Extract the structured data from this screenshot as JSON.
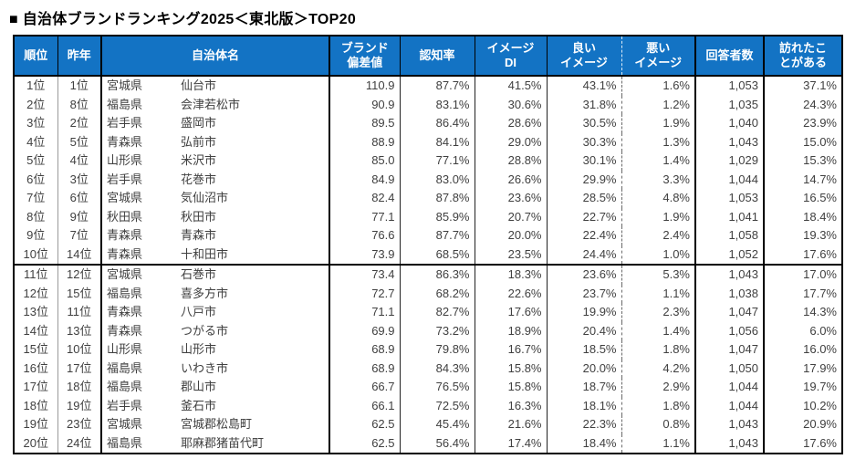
{
  "title": "■ 自治体ブランドランキング2025＜東北版＞TOP20",
  "colors": {
    "header_bg": "#1373C4",
    "header_text": "#FFFFFF",
    "body_text": "#404040",
    "border": "#000000"
  },
  "table": {
    "headers": [
      "順位",
      "昨年",
      "自治体名",
      "ブランド\n偏差値",
      "認知率",
      "イメージ\nDI",
      "良い\nイメージ",
      "悪い\nイメージ",
      "回答者数",
      "訪れたこ\nとがある"
    ]
  },
  "chart_data": {
    "type": "table",
    "title": "自治体ブランドランキング2025＜東北版＞TOP20",
    "columns": [
      "順位",
      "昨年",
      "自治体名（県）",
      "自治体名（市町村）",
      "ブランド偏差値",
      "認知率",
      "イメージDI",
      "良いイメージ",
      "悪いイメージ",
      "回答者数",
      "訪れたことがある"
    ],
    "rows": [
      [
        "1位",
        "1位",
        "宮城県",
        "仙台市",
        "110.9",
        "87.7%",
        "41.5%",
        "43.1%",
        "1.6%",
        "1,053",
        "37.1%"
      ],
      [
        "2位",
        "8位",
        "福島県",
        "会津若松市",
        "90.9",
        "83.1%",
        "30.6%",
        "31.8%",
        "1.2%",
        "1,035",
        "24.3%"
      ],
      [
        "3位",
        "2位",
        "岩手県",
        "盛岡市",
        "89.5",
        "86.4%",
        "28.6%",
        "30.5%",
        "1.9%",
        "1,040",
        "23.9%"
      ],
      [
        "4位",
        "5位",
        "青森県",
        "弘前市",
        "88.9",
        "84.1%",
        "29.0%",
        "30.3%",
        "1.3%",
        "1,043",
        "15.0%"
      ],
      [
        "5位",
        "4位",
        "山形県",
        "米沢市",
        "85.0",
        "77.1%",
        "28.8%",
        "30.1%",
        "1.4%",
        "1,029",
        "15.3%"
      ],
      [
        "6位",
        "3位",
        "岩手県",
        "花巻市",
        "84.9",
        "83.0%",
        "26.6%",
        "29.9%",
        "3.3%",
        "1,044",
        "14.7%"
      ],
      [
        "7位",
        "6位",
        "宮城県",
        "気仙沼市",
        "82.4",
        "87.8%",
        "23.6%",
        "28.5%",
        "4.8%",
        "1,053",
        "16.5%"
      ],
      [
        "8位",
        "9位",
        "秋田県",
        "秋田市",
        "77.1",
        "85.9%",
        "20.7%",
        "22.7%",
        "1.9%",
        "1,041",
        "18.4%"
      ],
      [
        "9位",
        "7位",
        "青森県",
        "青森市",
        "76.6",
        "87.7%",
        "20.0%",
        "22.4%",
        "2.4%",
        "1,058",
        "19.3%"
      ],
      [
        "10位",
        "14位",
        "青森県",
        "十和田市",
        "73.9",
        "68.5%",
        "23.5%",
        "24.4%",
        "1.0%",
        "1,052",
        "17.6%"
      ],
      [
        "11位",
        "12位",
        "宮城県",
        "石巻市",
        "73.4",
        "86.3%",
        "18.3%",
        "23.6%",
        "5.3%",
        "1,043",
        "17.0%"
      ],
      [
        "12位",
        "15位",
        "福島県",
        "喜多方市",
        "72.7",
        "68.2%",
        "22.6%",
        "23.7%",
        "1.1%",
        "1,038",
        "17.7%"
      ],
      [
        "13位",
        "11位",
        "青森県",
        "八戸市",
        "71.1",
        "82.7%",
        "17.6%",
        "19.9%",
        "2.3%",
        "1,047",
        "14.3%"
      ],
      [
        "14位",
        "13位",
        "青森県",
        "つがる市",
        "69.9",
        "73.2%",
        "18.9%",
        "20.4%",
        "1.4%",
        "1,056",
        "6.0%"
      ],
      [
        "15位",
        "10位",
        "山形県",
        "山形市",
        "68.9",
        "79.8%",
        "16.7%",
        "18.5%",
        "1.8%",
        "1,047",
        "16.0%"
      ],
      [
        "16位",
        "17位",
        "福島県",
        "いわき市",
        "68.9",
        "84.3%",
        "15.8%",
        "20.0%",
        "4.2%",
        "1,050",
        "17.9%"
      ],
      [
        "17位",
        "18位",
        "福島県",
        "郡山市",
        "66.7",
        "76.5%",
        "15.8%",
        "18.7%",
        "2.9%",
        "1,044",
        "19.7%"
      ],
      [
        "18位",
        "19位",
        "岩手県",
        "釜石市",
        "66.1",
        "72.5%",
        "16.3%",
        "18.1%",
        "1.8%",
        "1,044",
        "10.2%"
      ],
      [
        "19位",
        "23位",
        "宮城県",
        "宮城郡松島町",
        "62.5",
        "45.4%",
        "21.6%",
        "22.3%",
        "0.8%",
        "1,043",
        "20.9%"
      ],
      [
        "20位",
        "24位",
        "福島県",
        "耶麻郡猪苗代町",
        "62.5",
        "56.4%",
        "17.4%",
        "18.4%",
        "1.1%",
        "1,043",
        "17.6%"
      ]
    ]
  }
}
